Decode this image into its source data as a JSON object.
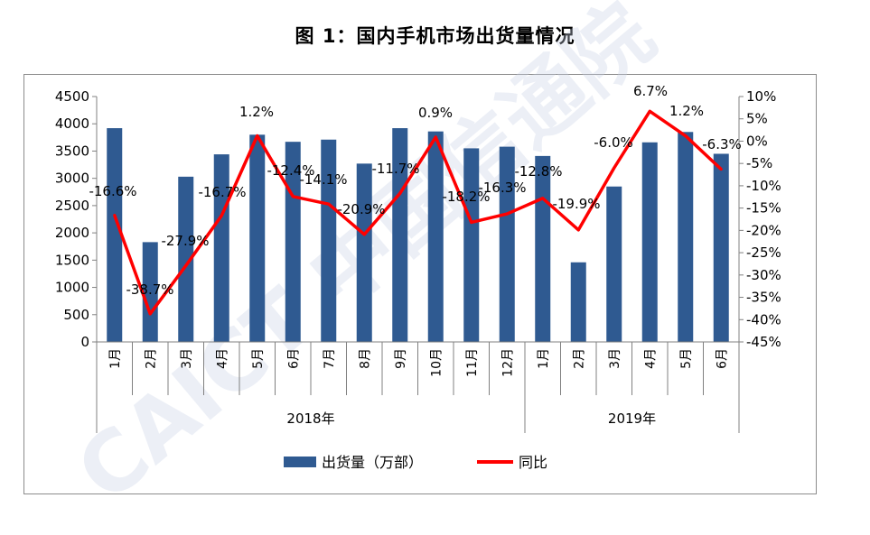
{
  "title": "图 1：国内手机市场出货量情况",
  "chart_data": {
    "type": "bar+line",
    "title": "图 1：国内手机市场出货量情况",
    "categories": [
      "1月",
      "2月",
      "3月",
      "4月",
      "5月",
      "6月",
      "7月",
      "8月",
      "9月",
      "10月",
      "11月",
      "12月",
      "1月",
      "2月",
      "3月",
      "4月",
      "5月",
      "6月"
    ],
    "groups": [
      {
        "label": "2018年",
        "count": 12
      },
      {
        "label": "2019年",
        "count": 6
      }
    ],
    "series": [
      {
        "name": "出货量（万部）",
        "type": "bar",
        "axis": "left",
        "color": "#2f5a91",
        "values": [
          3920,
          1830,
          3030,
          3440,
          3800,
          3670,
          3710,
          3270,
          3920,
          3860,
          3550,
          3580,
          3410,
          1460,
          2850,
          3660,
          3850,
          3450
        ]
      },
      {
        "name": "同比",
        "type": "line",
        "axis": "right",
        "color": "#ff0000",
        "values": [
          -16.6,
          -38.7,
          -27.9,
          -16.7,
          1.2,
          -12.4,
          -14.1,
          -20.9,
          -11.7,
          0.9,
          -18.2,
          -16.3,
          -12.8,
          -19.9,
          -6.0,
          6.7,
          1.2,
          -6.3
        ],
        "labels": [
          "-16.6%",
          "-38.7%",
          "-27.9%",
          "-16.7%",
          "1.2%",
          "-12.4%",
          "-14.1%",
          "-20.9%",
          "-11.7%",
          "0.9%",
          "-18.2%",
          "-16.3%",
          "-12.8%",
          "-19.9%",
          "-6.0%",
          "6.7%",
          "1.2%",
          "-6.3%"
        ]
      }
    ],
    "y_left": {
      "min": 0,
      "max": 4500,
      "step": 500,
      "ticks": [
        "0",
        "500",
        "1000",
        "1500",
        "2000",
        "2500",
        "3000",
        "3500",
        "4000",
        "4500"
      ]
    },
    "y_right": {
      "min": -45,
      "max": 10,
      "step": 5,
      "ticks": [
        "-45%",
        "-40%",
        "-35%",
        "-30%",
        "-25%",
        "-20%",
        "-15%",
        "-10%",
        "-5%",
        "0%",
        "5%",
        "10%"
      ]
    },
    "legend_position": "bottom",
    "grid": false
  },
  "watermark": "CAICT 中国信通院"
}
